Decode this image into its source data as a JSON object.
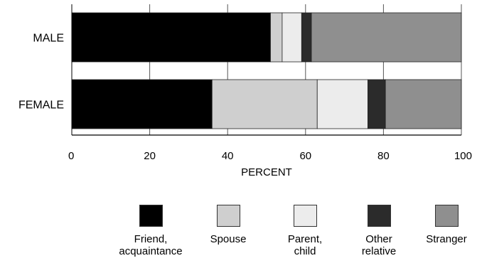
{
  "chart_data": {
    "type": "bar",
    "orientation": "horizontal",
    "stacked": true,
    "categories": [
      "MALE",
      "FEMALE"
    ],
    "series": [
      {
        "name": "Friend,\nacquaintance",
        "values": [
          51,
          36
        ],
        "color": "#000000"
      },
      {
        "name": "Spouse",
        "values": [
          3,
          27
        ],
        "color": "#cfcfcf"
      },
      {
        "name": "Parent,\nchild",
        "values": [
          5,
          13
        ],
        "color": "#ececec"
      },
      {
        "name": "Other\nrelative",
        "values": [
          2.5,
          4.5
        ],
        "color": "#2b2b2b"
      },
      {
        "name": "Stranger",
        "values": [
          38.5,
          19.5
        ],
        "color": "#8f8f8f"
      }
    ],
    "xlabel": "PERCENT",
    "xlim": [
      0,
      100
    ],
    "xticks": [
      "0",
      "20",
      "40",
      "60",
      "80",
      "100"
    ],
    "grid": true,
    "legend_position": "bottom"
  }
}
